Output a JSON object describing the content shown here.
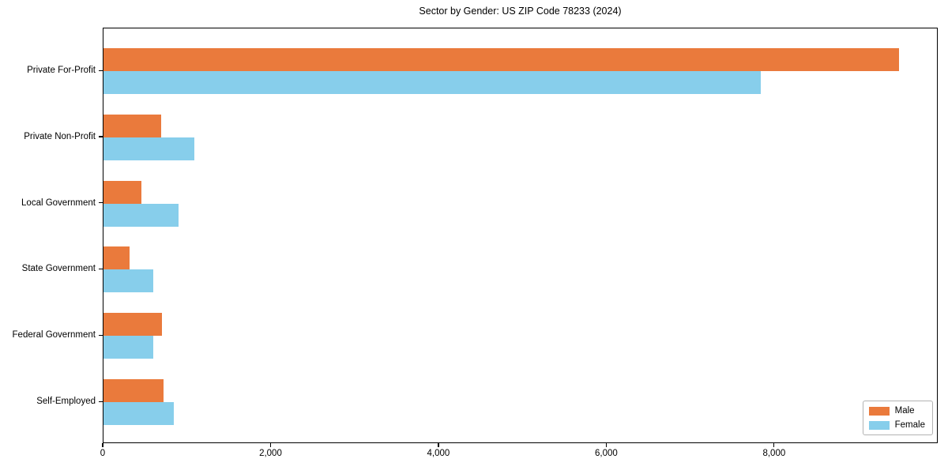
{
  "figure": {
    "title": "Sector by Gender: US ZIP Code 78233 (2024)"
  },
  "colors": {
    "male": "#EA7A3C",
    "female": "#87CEEB",
    "spine": "#000000",
    "legend_border": "#b3b3b3",
    "background": "#ffffff"
  },
  "chart_data": {
    "type": "bar",
    "orientation": "horizontal",
    "title": "Sector by Gender: US ZIP Code 78233 (2024)",
    "categories": [
      "Private For-Profit",
      "Private Non-Profit",
      "Local Government",
      "State Government",
      "Federal Government",
      "Self-Employed"
    ],
    "series": [
      {
        "name": "Male",
        "color": "#EA7A3C",
        "values": [
          9480,
          690,
          450,
          310,
          700,
          715
        ]
      },
      {
        "name": "Female",
        "color": "#87CEEB",
        "values": [
          7830,
          1085,
          890,
          595,
          595,
          840
        ]
      }
    ],
    "xlabel": "",
    "ylabel": "",
    "xlim": [
      0,
      9950
    ],
    "xticks": [
      0,
      2000,
      4000,
      6000,
      8000
    ],
    "xtick_labels": [
      "0",
      "2,000",
      "4,000",
      "6,000",
      "8,000"
    ],
    "grid": false,
    "legend": {
      "position": "lower right",
      "entries": [
        "Male",
        "Female"
      ]
    }
  }
}
